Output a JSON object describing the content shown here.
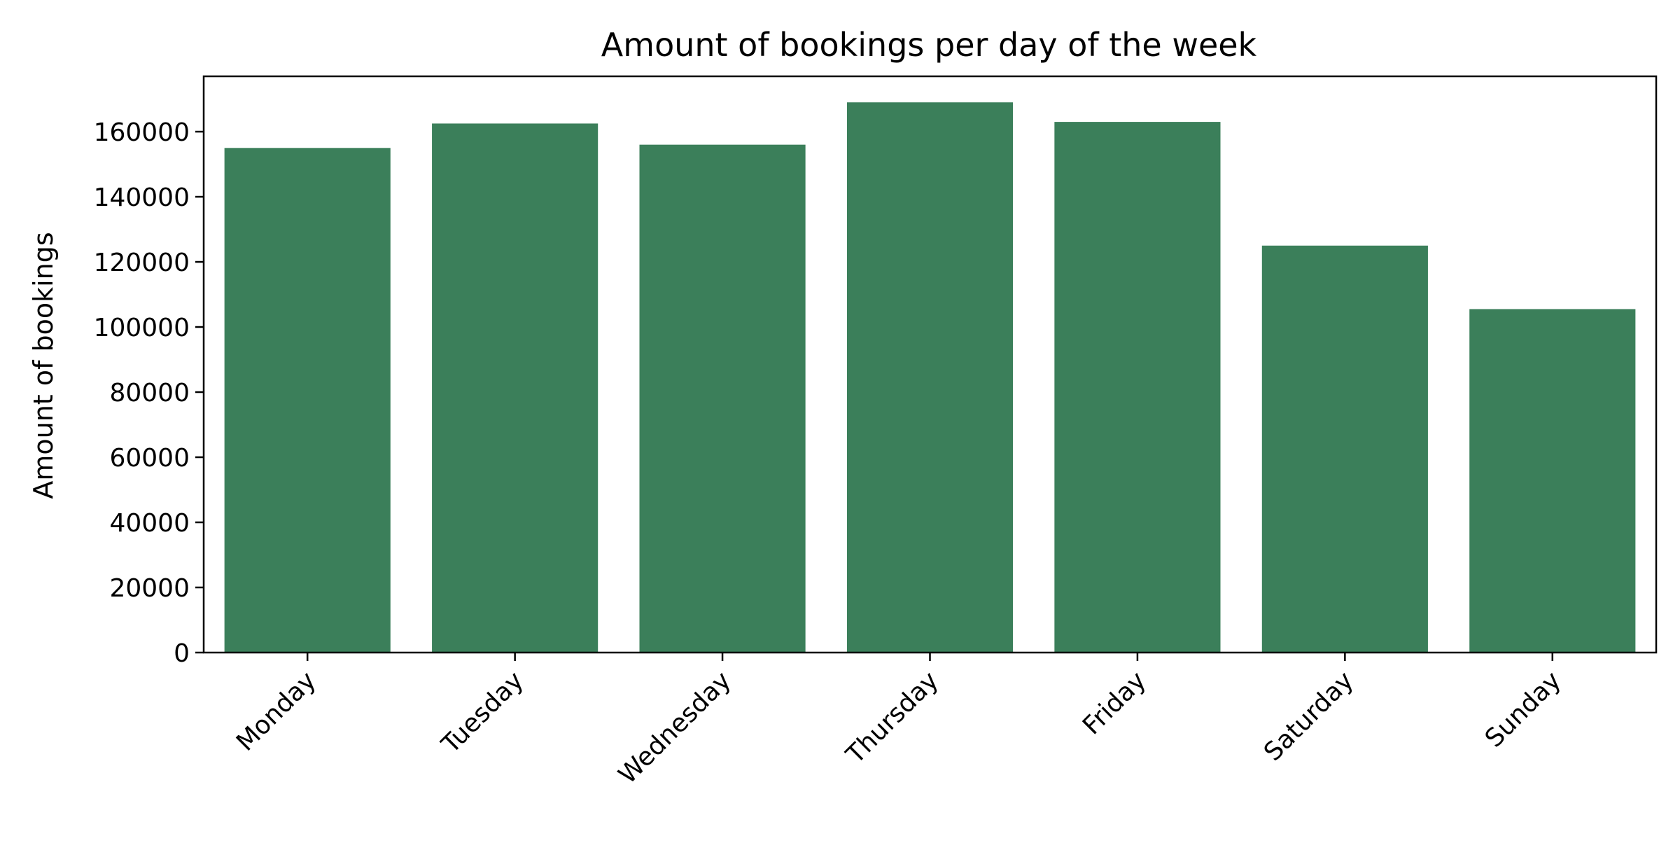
{
  "chart_data": {
    "type": "bar",
    "title": "Amount of bookings per day of the week",
    "xlabel": "",
    "ylabel": "Amount of bookings",
    "categories": [
      "Monday",
      "Tuesday",
      "Wednesday",
      "Thursday",
      "Friday",
      "Saturday",
      "Sunday"
    ],
    "values": [
      155000,
      162500,
      156000,
      169000,
      163000,
      125000,
      105500
    ],
    "ylim": [
      0,
      177000
    ],
    "yticks": [
      0,
      20000,
      40000,
      60000,
      80000,
      100000,
      120000,
      140000,
      160000
    ],
    "grid": false,
    "legend": "none",
    "bar_color": "#3b7f5a",
    "axis_color": "#000000",
    "background_color": "#ffffff"
  }
}
